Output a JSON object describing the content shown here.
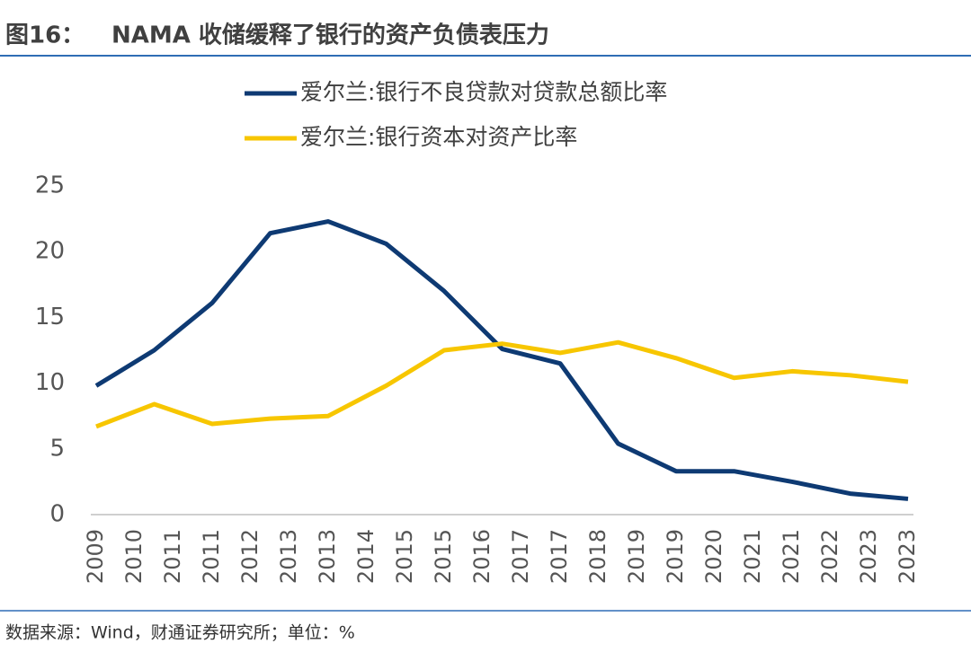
{
  "chart_data": {
    "type": "line",
    "figure_label": "图16：",
    "title": "NAMA 收储缓释了银行的资产负债表压力",
    "source": "数据来源：Wind，财通证券研究所；单位：%",
    "x_tick_labels": [
      "2009",
      "2010",
      "2011",
      "2011",
      "2012",
      "2013",
      "2013",
      "2014",
      "2015",
      "2015",
      "2016",
      "2017",
      "2017",
      "2018",
      "2019",
      "2019",
      "2020",
      "2021",
      "2021",
      "2022",
      "2023",
      "2023"
    ],
    "series": [
      {
        "name": "爱尔兰:银行不良贷款对贷款总额比率",
        "color": "#0e3a73",
        "values": [
          9.8,
          12.5,
          16.1,
          21.4,
          22.3,
          20.6,
          17.0,
          12.6,
          11.5,
          5.4,
          3.3,
          3.3,
          2.5,
          1.6,
          1.2
        ]
      },
      {
        "name": "爱尔兰:银行资本对资产比率",
        "color": "#f7c600",
        "values": [
          6.7,
          8.4,
          6.9,
          7.3,
          7.5,
          9.8,
          12.5,
          13.0,
          12.3,
          13.1,
          11.9,
          10.4,
          10.9,
          10.6,
          10.1
        ]
      }
    ],
    "ylim": [
      0,
      25
    ],
    "yticks": [
      0,
      5,
      10,
      15,
      20,
      25
    ],
    "grid": false
  }
}
